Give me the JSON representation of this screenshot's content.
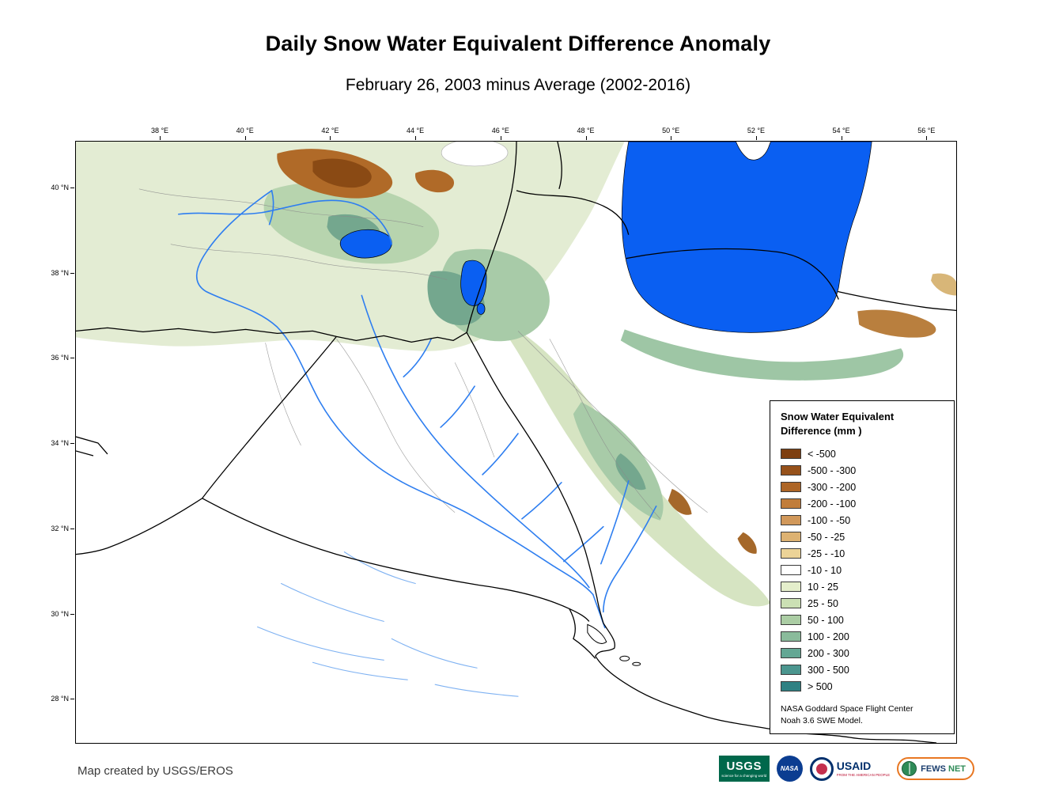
{
  "header": {
    "title": "Daily Snow Water Equivalent Difference Anomaly",
    "subtitle": "February 26, 2003 minus Average (2002-2016)"
  },
  "map": {
    "lon_ticks": [
      "38 °E",
      "40 °E",
      "42 °E",
      "44 °E",
      "46 °E",
      "48 °E",
      "50 °E",
      "52 °E",
      "54 °E",
      "56 °E"
    ],
    "lat_ticks": [
      "40 °N",
      "38 °N",
      "36 °N",
      "34 °N",
      "32 °N",
      "30 °N",
      "28 °N"
    ]
  },
  "legend": {
    "title": [
      "Snow Water Equivalent",
      "Difference (mm )"
    ],
    "entries": [
      {
        "label": "< -500",
        "color": "#7e3f10"
      },
      {
        "label": "-500 - -300",
        "color": "#96511a"
      },
      {
        "label": "-300 - -200",
        "color": "#ad6526"
      },
      {
        "label": "-200 - -100",
        "color": "#c17d3b"
      },
      {
        "label": "-100 - -50",
        "color": "#d1985a"
      },
      {
        "label": "-50 - -25",
        "color": "#ddb272"
      },
      {
        "label": "-25 - -10",
        "color": "#ecd397"
      },
      {
        "label": "-10 - 10",
        "color": "#ffffff"
      },
      {
        "label": "10 - 25",
        "color": "#e4eecb"
      },
      {
        "label": "25 - 50",
        "color": "#cbe0b4"
      },
      {
        "label": "50 - 100",
        "color": "#abcda4"
      },
      {
        "label": "100 - 200",
        "color": "#8abb9b"
      },
      {
        "label": "200 - 300",
        "color": "#63a794"
      },
      {
        "label": "300 - 500",
        "color": "#4b968f"
      },
      {
        "label": "> 500",
        "color": "#2f8183"
      }
    ],
    "source": [
      "NASA Goddard Space Flight Center",
      "Noah 3.6 SWE Model."
    ]
  },
  "footer": {
    "credit": "Map created by USGS/EROS",
    "logos": {
      "usgs": {
        "name": "USGS",
        "tagline": "science for a changing world"
      },
      "nasa": {
        "name": "NASA"
      },
      "usaid": {
        "name": "USAID",
        "tagline": "FROM THE AMERICAN PEOPLE"
      },
      "fews": {
        "name_a": "FEWS ",
        "name_b": "NET"
      }
    }
  },
  "colors": {
    "water": "#0a5ff2",
    "river": "#2e7ef0",
    "border": "#000000"
  }
}
